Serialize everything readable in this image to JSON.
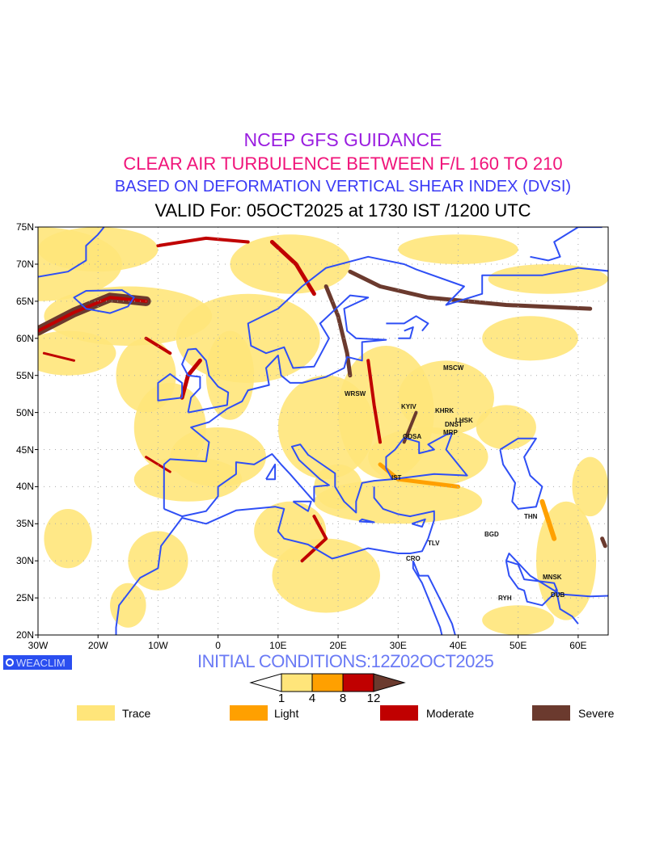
{
  "titles": {
    "line1": "NCEP GFS GUIDANCE",
    "line2": "CLEAR AIR TURBULENCE BETWEEN F/L 160 TO 210",
    "line3": "BASED ON DEFORMATION VERTICAL SHEAR INDEX (DVSI)",
    "line4": "VALID For: 05OCT2025 at 1730 IST /1200 UTC"
  },
  "axes": {
    "lat_labels": [
      "75N",
      "70N",
      "65N",
      "60N",
      "55N",
      "50N",
      "45N",
      "40N",
      "35N",
      "30N",
      "25N",
      "20N"
    ],
    "lon_labels": [
      "30W",
      "20W",
      "10W",
      "0",
      "10E",
      "20E",
      "30E",
      "40E",
      "50E",
      "60E"
    ]
  },
  "cities": [
    {
      "label": "MSCW"
    },
    {
      "label": "WRSW"
    },
    {
      "label": "KYIV"
    },
    {
      "label": "KHRK"
    },
    {
      "label": "LHSK"
    },
    {
      "label": "DNST"
    },
    {
      "label": "MRP"
    },
    {
      "label": "ODSA"
    },
    {
      "label": "IST"
    },
    {
      "label": "THN"
    },
    {
      "label": "BGD"
    },
    {
      "label": "TLV"
    },
    {
      "label": "CRO"
    },
    {
      "label": "MNSK"
    },
    {
      "label": "DUB"
    },
    {
      "label": "RYH"
    }
  ],
  "branding": {
    "badge": "WEACLIM"
  },
  "initial_conditions": "INITIAL CONDITIONS:12Z02OCT2025",
  "colorbar": {
    "thresholds": [
      "1",
      "4",
      "8",
      "12"
    ]
  },
  "legend": [
    {
      "label": "Trace",
      "color": "#ffe57a"
    },
    {
      "label": "Light",
      "color": "#ffa000"
    },
    {
      "label": "Moderate",
      "color": "#c00000"
    },
    {
      "label": "Severe",
      "color": "#6b3a2e"
    }
  ],
  "colors": {
    "coast": "#2f4ff5",
    "background": "#ffffff"
  }
}
